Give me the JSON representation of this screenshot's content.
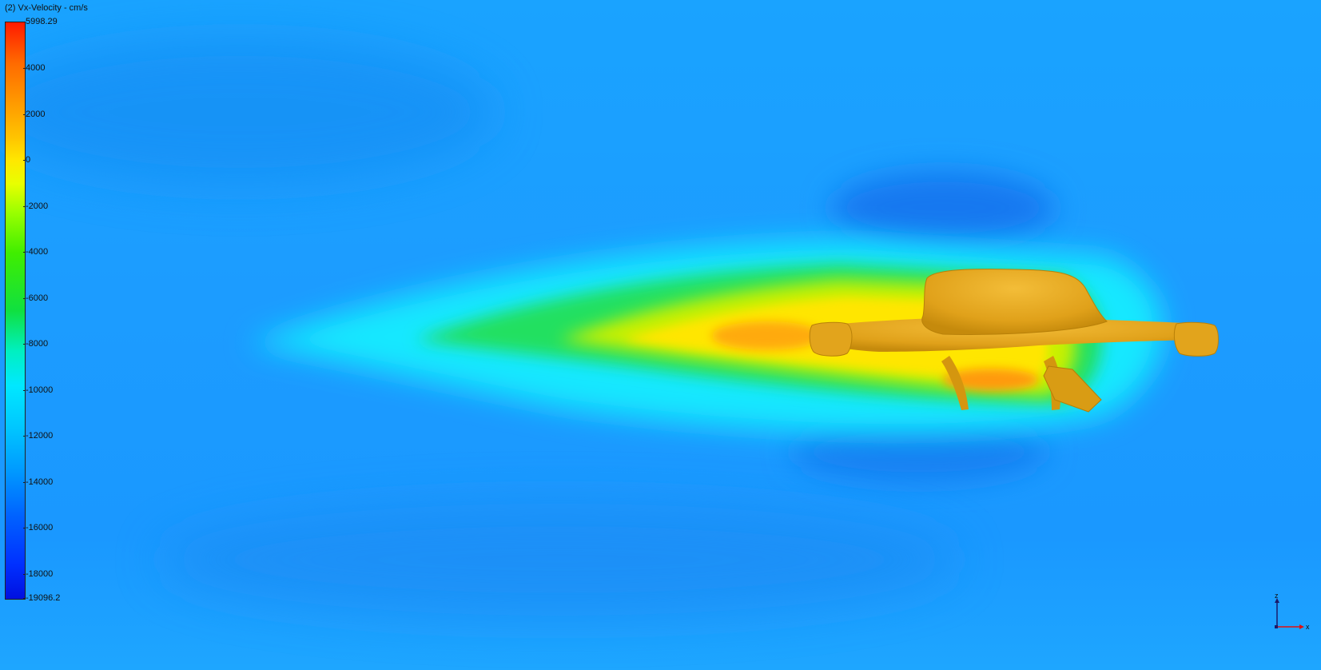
{
  "legend": {
    "title": "(2) Vx-Velocity - cm/s",
    "max_label": "5998.29",
    "min_label": "-19096.2",
    "ticks": [
      "4000",
      "2000",
      "0",
      "-2000",
      "-4000",
      "-6000",
      "-8000",
      "-10000",
      "-12000",
      "-14000",
      "-16000",
      "-18000"
    ]
  },
  "triad": {
    "z_label": "z",
    "x_label": "x"
  },
  "colors": {
    "background_flow": "#1aa3ff",
    "model": "#e3a418",
    "legend_high": "#ff1a00",
    "legend_low": "#0010e0"
  }
}
